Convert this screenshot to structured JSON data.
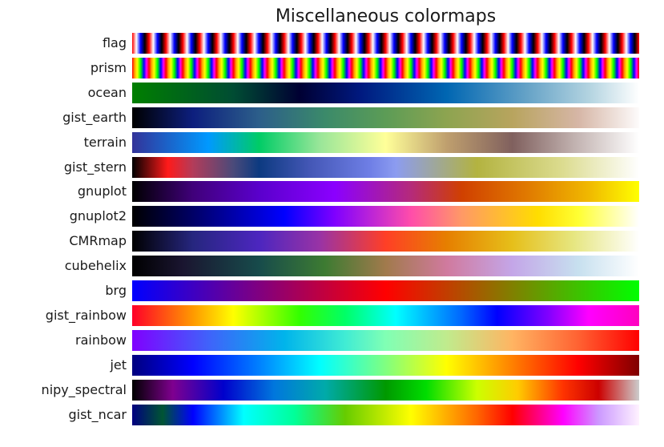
{
  "chart_data": {
    "type": "heatmap",
    "title": "Miscellaneous colormaps",
    "xlabel": "",
    "ylabel": "",
    "grid": false,
    "legend": "none",
    "colormaps": [
      {
        "name": "flag",
        "stops": [
          "#ff0000",
          "#ffffff",
          "#0000ff",
          "#000000"
        ],
        "repeat": 30,
        "gradient": "#ff0000 0%, #ffffff 25%, #0000ff 50%, #000000 75%, #ff0000 100%"
      },
      {
        "name": "prism",
        "stops": [
          "#ff0000",
          "#ffff00",
          "#00ff00",
          "#0000ff",
          "#ff00ff"
        ],
        "repeat": 30,
        "gradient": "#ff0000 0%, #ffa500 15%, #ffff00 30%, #00ff00 50%, #0000ff 70%, #ff00ff 85%, #ff0000 100%"
      },
      {
        "name": "ocean",
        "gradient": "#007f00 0%, #004c33 20%, #000033 33%, #00197f 45%, #0066b2 62%, #66a3c7 78%, #b2d3e0 90%, #ffffff 100%"
      },
      {
        "name": "gist_earth",
        "gradient": "#000000 0%, #0d1f7e 12%, #2c5e8a 25%, #3b8a6a 38%, #5c9c56 50%, #8da450 62%, #b8a45e 75%, #d6b6a6 88%, #fdfbfb 100%"
      },
      {
        "name": "terrain",
        "gradient": "#333399 0%, #0099ff 15%, #00cc66 25%, #99e699 37%, #ffff99 50%, #bf9f6e 62%, #80605e 75%, #c0b0ae 87%, #ffffff 100%"
      },
      {
        "name": "gist_stern",
        "gradient": "#000000 0%, #ff1a1a 7%, #b23c5a 12%, #4a4a7a 20%, #0c3a80 25%, #4457b6 35%, #6f7fe6 47%, #8c9cf0 52%, #b3b340 68%, #dcdc90 85%, #ffffff 100%"
      },
      {
        "name": "gnuplot",
        "gradient": "#000000 0%, #40007a 12%, #5a00cc 25%, #8b00ff 40%, #b52a7a 55%, #d04000 65%, #e07a00 78%, #f0b800 90%, #ffff00 100%"
      },
      {
        "name": "gnuplot2",
        "gradient": "#000000 0%, #000080 15%, #0000ff 30%, #8000ff 40%, #ff4daa 55%, #ff9966 65%, #ffdd00 80%, #ffff33 88%, #ffffff 100%"
      },
      {
        "name": "CMRmap",
        "gradient": "#000000 0%, #26267f 12%, #4c26bf 25%, #9933a5 37%, #ff3f26 50%, #e67f00 62%, #e6bf1a 75%, #e6e680 87%, #ffffff 100%"
      },
      {
        "name": "cubehelix",
        "gradient": "#000000 0%, #1a1530 10%, #174b4b 25%, #3d7b32 38%, #a17a4c 50%, #d07a9e 62%, #c4a6e8 75%, #c7e0ef 88%, #ffffff 100%"
      },
      {
        "name": "brg",
        "gradient": "#0000ff 0%, #800080 25%, #ff0000 50%, #808000 75%, #00ff00 100%"
      },
      {
        "name": "gist_rainbow",
        "gradient": "#ff0029 0%, #ff9900 12%, #ffff00 20%, #33ff00 33%, #00ff66 42%, #00ffff 52%, #0066ff 65%, #0000ff 72%, #8000ff 82%, #ff00ff 90%, #ff00bf 100%"
      },
      {
        "name": "rainbow",
        "gradient": "#8000ff 0%, #4062fa 15%, #00b4eb 30%, #40ecd4 42%, #80ffb4 50%, #c0eb8d 62%, #ffb462 75%, #ff6232 88%, #ff0000 100%"
      },
      {
        "name": "jet",
        "gradient": "#00007f 0%, #0000ff 12%, #0080ff 25%, #00ffff 37%, #80ff80 50%, #ffff00 62%, #ff8000 75%, #ff0000 88%, #7f0000 100%"
      },
      {
        "name": "nipy_spectral",
        "gradient": "#000000 0%, #7f008f 8%, #0000cc 18%, #0077dd 28%, #00aaaa 38%, #009900 50%, #00dd00 58%, #ccff00 68%, #ffcc00 76%, #ff3300 85%, #cc0000 92%, #cccccc 100%"
      },
      {
        "name": "gist_ncar",
        "gradient": "#000080 0%, #005533 6%, #0000ff 12%, #00ffff 22%, #00ff99 32%, #66cc00 42%, #ffff00 55%, #ff6600 68%, #ff0000 75%, #ff00ff 85%, #cc99ff 92%, #fff2ff 100%"
      }
    ]
  }
}
